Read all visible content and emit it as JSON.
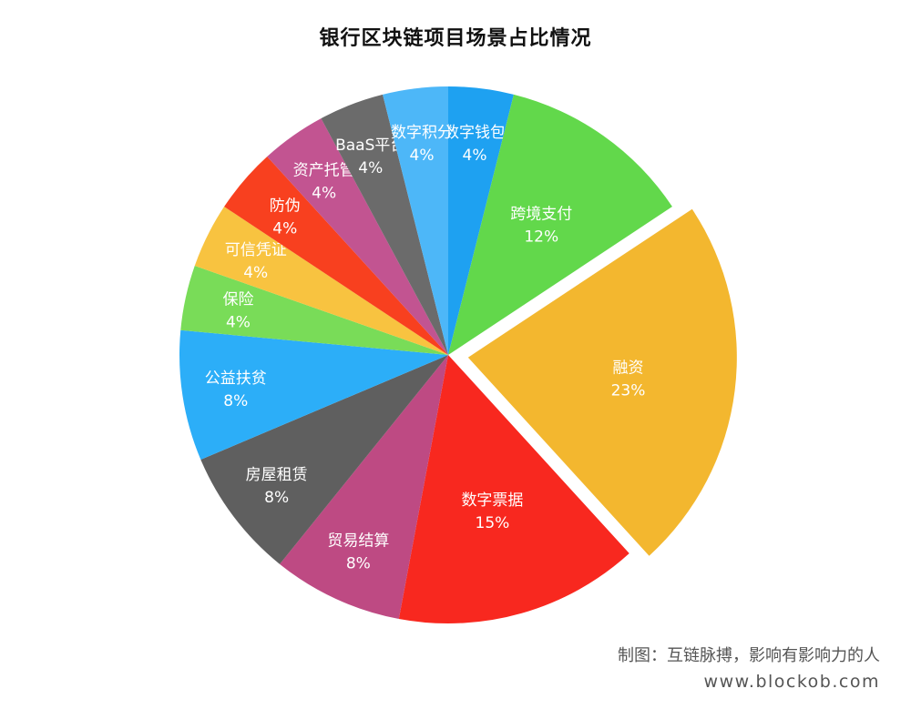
{
  "chart_data": {
    "type": "pie",
    "title": "银行区块链项目场景占比情况",
    "slices": [
      {
        "label": "数字钱包",
        "value": 4,
        "value_label": "4%",
        "color": "#1EA1F1"
      },
      {
        "label": "跨境支付",
        "value": 12,
        "value_label": "12%",
        "color": "#62D84B"
      },
      {
        "label": "融资",
        "value": 23,
        "value_label": "23%",
        "color": "#F3B72F",
        "exploded": true
      },
      {
        "label": "数字票据",
        "value": 15,
        "value_label": "15%",
        "color": "#F8281F"
      },
      {
        "label": "贸易结算",
        "value": 8,
        "value_label": "8%",
        "color": "#BE4A83"
      },
      {
        "label": "房屋租赁",
        "value": 8,
        "value_label": "8%",
        "color": "#5F5F5F"
      },
      {
        "label": "公益扶贫",
        "value": 8,
        "value_label": "8%",
        "color": "#2CAEF8"
      },
      {
        "label": "保险",
        "value": 4,
        "value_label": "4%",
        "color": "#79DC58"
      },
      {
        "label": "可信凭证",
        "value": 4,
        "value_label": "4%",
        "color": "#F8C340"
      },
      {
        "label": "防伪",
        "value": 4,
        "value_label": "4%",
        "color": "#F8401F"
      },
      {
        "label": "资产托管",
        "value": 4,
        "value_label": "4%",
        "color": "#C25491"
      },
      {
        "label": "BaaS平台",
        "value": 4,
        "value_label": "4%",
        "color": "#6B6B6B"
      },
      {
        "label": "数字积分",
        "value": 4,
        "value_label": "4%",
        "color": "#4DB7F8"
      }
    ]
  },
  "footer": {
    "credit": "制图：互链脉搏，影响有影响力的人",
    "website": "www.blockob.com"
  }
}
